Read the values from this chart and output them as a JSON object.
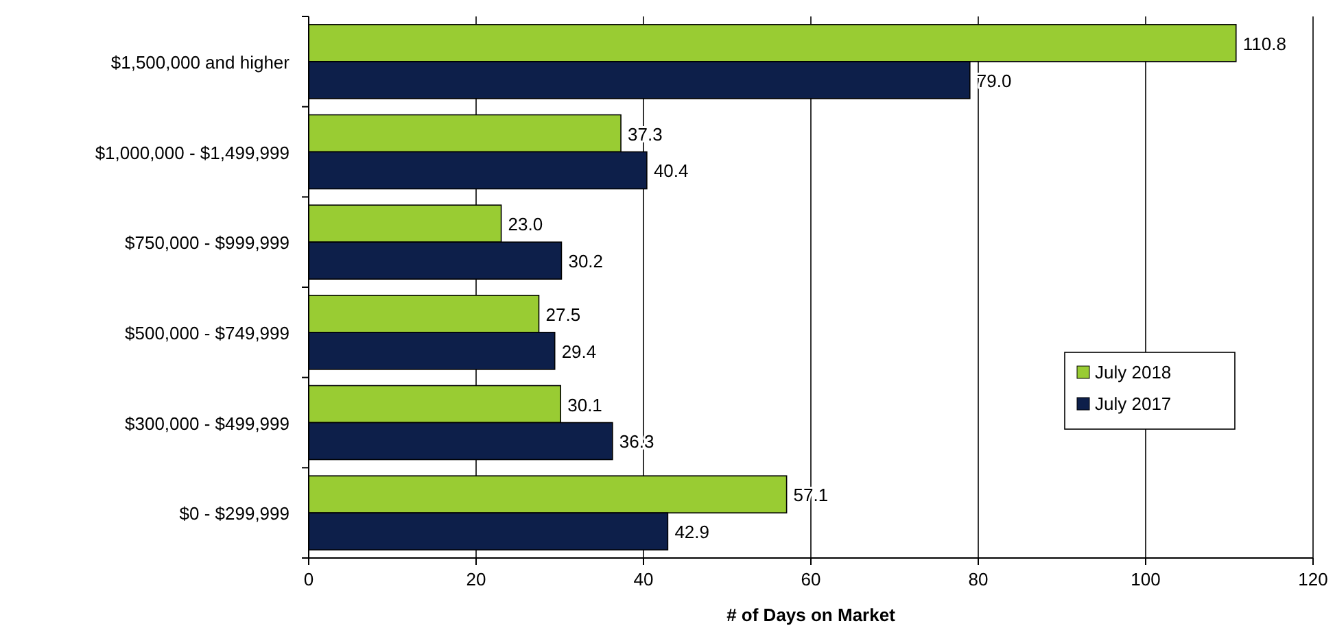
{
  "chart_data": {
    "type": "bar",
    "orientation": "horizontal",
    "xlabel": "# of Days on Market",
    "categories": [
      "$1,500,000 and higher",
      "$1,000,000 - $1,499,999",
      "$750,000 - $999,999",
      "$500,000 - $749,999",
      "$300,000 - $499,999",
      "$0 - $299,999"
    ],
    "series": [
      {
        "name": "July 2018",
        "color": "#99cc33",
        "values": [
          110.8,
          37.3,
          23.0,
          27.5,
          30.1,
          57.1
        ],
        "value_labels": [
          "110.8",
          "37.3",
          "23.0",
          "27.5",
          "30.1",
          "57.1"
        ]
      },
      {
        "name": "July 2017",
        "color": "#0d1f4a",
        "values": [
          79.0,
          40.4,
          30.2,
          29.4,
          36.3,
          42.9
        ],
        "value_labels": [
          "79.0",
          "40.4",
          "30.2",
          "29.4",
          "36.3",
          "42.9"
        ]
      }
    ],
    "xlim": [
      0,
      120
    ],
    "xticks": [
      0,
      20,
      40,
      60,
      80,
      100,
      120
    ],
    "grid": "x",
    "legend": "right"
  }
}
